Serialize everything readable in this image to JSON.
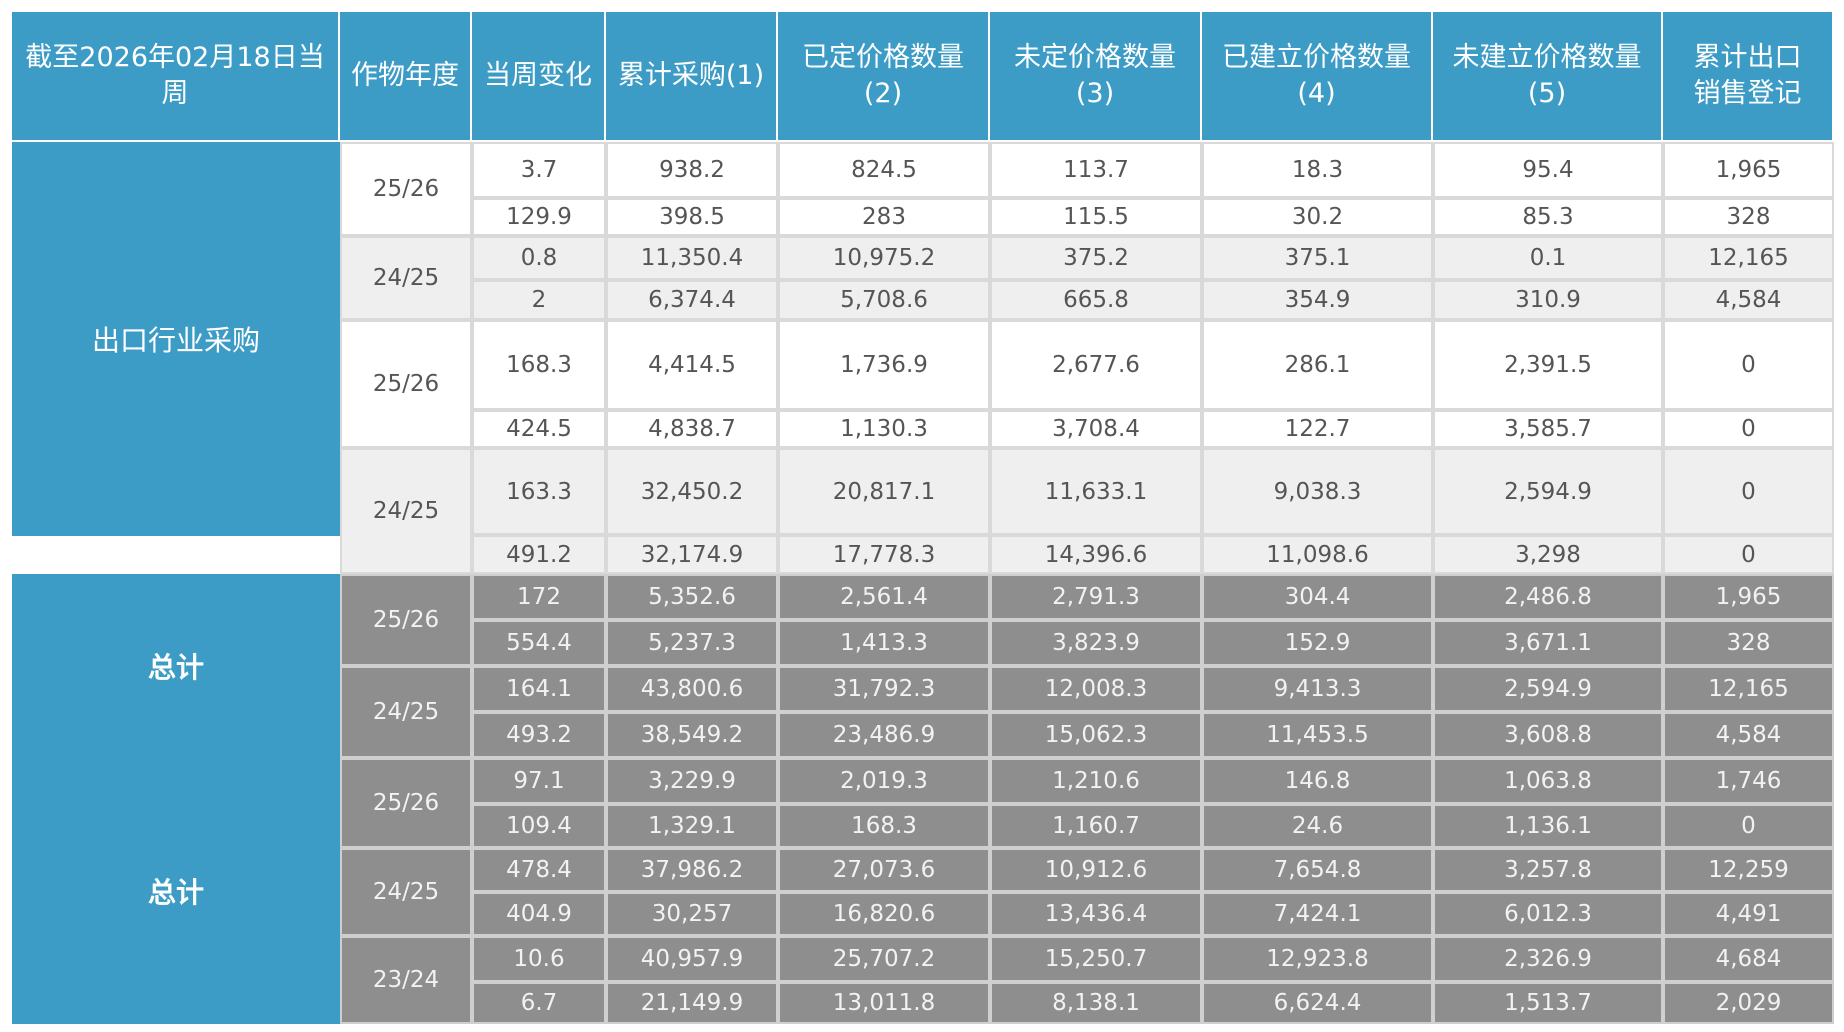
{
  "table": {
    "headers": [
      "截至2026年02月18日当周",
      "作物年度",
      "当周变化",
      "累计采购(1)",
      "已定价格数量\n(2)",
      "未定价格数量\n(3)",
      "已建立价格数量\n(4)",
      "未建立价格数量\n(5)",
      "累计出口\n销售登记"
    ],
    "sections": [
      {
        "label": "出口行业采购",
        "groups": [
          {
            "year": "25/26",
            "rows": [
              [
                "3.7",
                "938.2",
                "824.5",
                "113.7",
                "18.3",
                "95.4",
                "1,965"
              ],
              [
                "129.9",
                "398.5",
                "283",
                "115.5",
                "30.2",
                "85.3",
                "328"
              ]
            ]
          },
          {
            "year": "24/25",
            "rows": [
              [
                "0.8",
                "11,350.4",
                "10,975.2",
                "375.2",
                "375.1",
                "0.1",
                "12,165"
              ],
              [
                "2",
                "6,374.4",
                "5,708.6",
                "665.8",
                "354.9",
                "310.9",
                "4,584"
              ]
            ]
          },
          {
            "year": "25/26",
            "rows": [
              [
                "168.3",
                "4,414.5",
                "1,736.9",
                "2,677.6",
                "286.1",
                "2,391.5",
                "0"
              ],
              [
                "424.5",
                "4,838.7",
                "1,130.3",
                "3,708.4",
                "122.7",
                "3,585.7",
                "0"
              ]
            ]
          },
          {
            "year": "24/25",
            "rows": [
              [
                "163.3",
                "32,450.2",
                "20,817.1",
                "11,633.1",
                "9,038.3",
                "2,594.9",
                "0"
              ],
              [
                "491.2",
                "32,174.9",
                "17,778.3",
                "14,396.6",
                "11,098.6",
                "3,298",
                "0"
              ]
            ]
          }
        ]
      },
      {
        "label": "总计",
        "groups": [
          {
            "year": "25/26",
            "rows": [
              [
                "172",
                "5,352.6",
                "2,561.4",
                "2,791.3",
                "304.4",
                "2,486.8",
                "1,965"
              ],
              [
                "554.4",
                "5,237.3",
                "1,413.3",
                "3,823.9",
                "152.9",
                "3,671.1",
                "328"
              ]
            ]
          },
          {
            "year": "24/25",
            "rows": [
              [
                "164.1",
                "43,800.6",
                "31,792.3",
                "12,008.3",
                "9,413.3",
                "2,594.9",
                "12,165"
              ],
              [
                "493.2",
                "38,549.2",
                "23,486.9",
                "15,062.3",
                "11,453.5",
                "3,608.8",
                "4,584"
              ]
            ]
          }
        ]
      },
      {
        "label": "总计",
        "groups": [
          {
            "year": "25/26",
            "rows": [
              [
                "97.1",
                "3,229.9",
                "2,019.3",
                "1,210.6",
                "146.8",
                "1,063.8",
                "1,746"
              ],
              [
                "109.4",
                "1,329.1",
                "168.3",
                "1,160.7",
                "24.6",
                "1,136.1",
                "0"
              ]
            ]
          },
          {
            "year": "24/25",
            "rows": [
              [
                "478.4",
                "37,986.2",
                "27,073.6",
                "10,912.6",
                "7,654.8",
                "3,257.8",
                "12,259"
              ],
              [
                "404.9",
                "30,257",
                "16,820.6",
                "13,436.4",
                "7,424.1",
                "6,012.3",
                "4,491"
              ]
            ]
          },
          {
            "year": "23/24",
            "rows": [
              [
                "10.6",
                "40,957.9",
                "25,707.2",
                "15,250.7",
                "12,923.8",
                "2,326.9",
                "4,684"
              ],
              [
                "6.7",
                "21,149.9",
                "13,011.8",
                "8,138.1",
                "6,624.4",
                "1,513.7",
                "2,029"
              ]
            ]
          }
        ]
      }
    ]
  }
}
